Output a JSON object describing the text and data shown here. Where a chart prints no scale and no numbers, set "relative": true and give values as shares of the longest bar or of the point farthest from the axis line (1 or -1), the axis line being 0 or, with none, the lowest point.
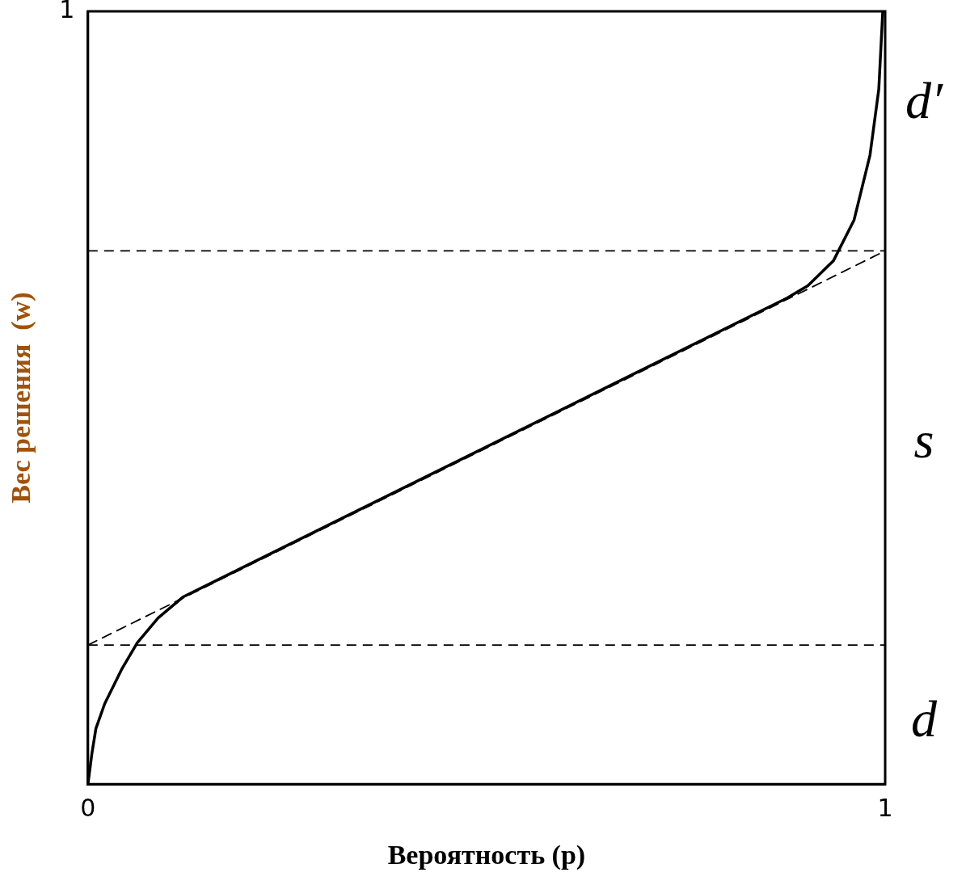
{
  "chart_data": {
    "type": "line",
    "xlabel": "Вероятность (p)",
    "ylabel": "Вес решения  (w)",
    "xlim": [
      0,
      1
    ],
    "xticks": [
      0,
      1
    ],
    "relative": true,
    "legend": false,
    "marker": "none",
    "series": [
      {
        "color": "#000000",
        "line_style": "solid",
        "x": [
          0,
          0.005,
          0.01,
          0.021,
          0.042,
          0.062,
          0.088,
          0.119,
          0.877,
          0.903,
          0.935,
          0.961,
          0.981,
          0.992,
          0.997
        ],
        "values": [
          0,
          0.04,
          0.072,
          0.104,
          0.148,
          0.183,
          0.215,
          0.242,
          0.629,
          0.645,
          0.677,
          0.73,
          0.814,
          0.899,
          1
        ]
      },
      {
        "color": "#000000",
        "line_style": "dashed",
        "x": [
          0,
          1
        ],
        "values": [
          0.18,
          0.69
        ]
      }
    ],
    "ref_lines": [
      {
        "axis": "y",
        "value": 0.18,
        "line_style": "dashed",
        "color": "#000000"
      },
      {
        "axis": "y",
        "value": 0.69,
        "line_style": "dashed",
        "color": "#000000"
      }
    ],
    "annotations": [
      "1",
      "d′",
      "s",
      "d"
    ]
  }
}
